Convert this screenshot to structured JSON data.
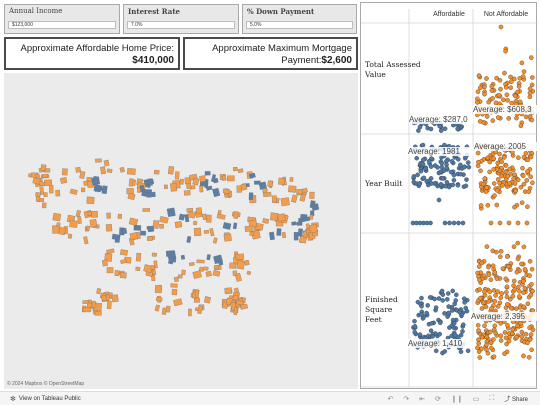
{
  "params": [
    {
      "label": "Annual Income",
      "value": "$123,000"
    },
    {
      "label": "Interest Rate",
      "value": "7.0%"
    },
    {
      "label": "% Down Payment",
      "value": "5.0%"
    }
  ],
  "kpis": [
    {
      "line1": "Approximate Affordable Home Price:",
      "value": "$410,000"
    },
    {
      "line1": "Approximate Maximum Mortgage",
      "prefix": "Payment:",
      "value": "$2,600"
    }
  ],
  "map": {
    "attribution": "© 2024 Mapbox  © OpenStreetMap"
  },
  "chart": {
    "columns": [
      "Affordable",
      "Not Affordable"
    ],
    "rows": [
      {
        "label_lines": [
          "Total Assessed",
          "Value"
        ],
        "avg_affordable": "Average: $287,0",
        "avg_not": "Average: $608,3"
      },
      {
        "label_lines": [
          "Year Built"
        ],
        "avg_affordable": "Average: 1981",
        "avg_not": "Average: 2005"
      },
      {
        "label_lines": [
          "Finished",
          "Square",
          "Feet"
        ],
        "avg_affordable": "Average: 1,410",
        "avg_not": "Average: 2,395"
      }
    ],
    "colors": {
      "affordable": "#4e79a7",
      "not_affordable": "#f28e2b"
    }
  },
  "footer": {
    "link": "View on Tableau Public",
    "share": "Share"
  }
}
